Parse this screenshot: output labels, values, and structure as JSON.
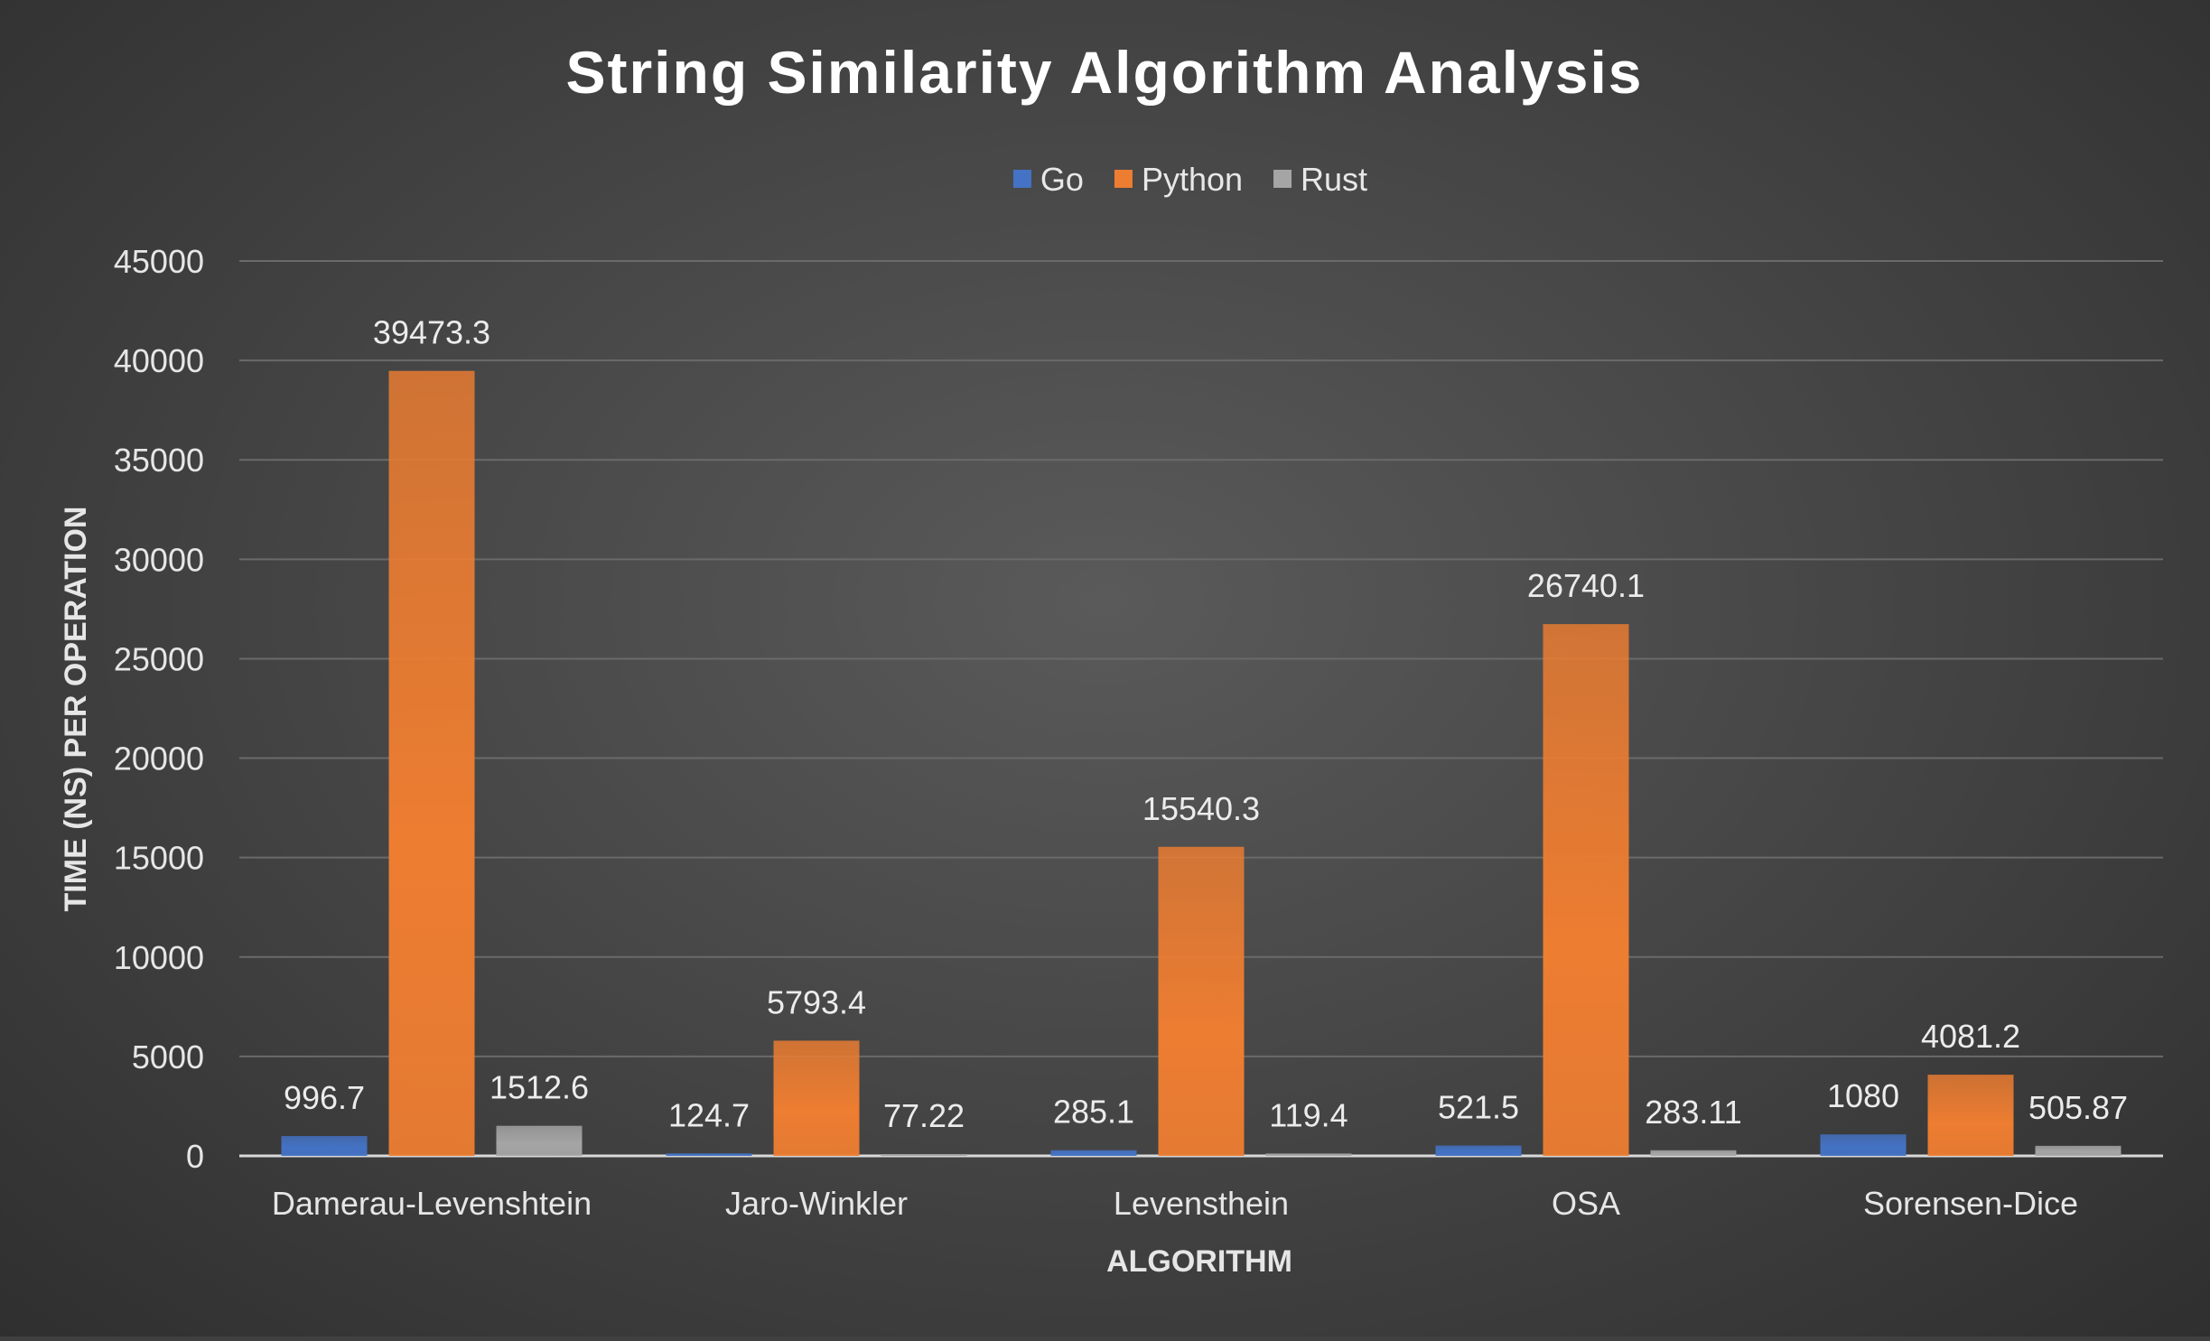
{
  "chart_data": {
    "type": "bar",
    "title": "String Similarity Algorithm Analysis",
    "xlabel": "ALGORITHM",
    "ylabel": "TIME (NS) PER OPERATION",
    "categories": [
      "Damerau-Levenshtein",
      "Jaro-Winkler",
      "Levensthein",
      "OSA",
      "Sorensen-Dice"
    ],
    "series": [
      {
        "name": "Go",
        "color": "#4472c4",
        "values": [
          996.7,
          124.7,
          285.1,
          521.5,
          1080
        ],
        "labels": [
          "996.7",
          "124.7",
          "285.1",
          "521.5",
          "1080"
        ]
      },
      {
        "name": "Python",
        "color": "#ed7d31",
        "values": [
          39473.3,
          5793.4,
          15540.3,
          26740.1,
          4081.2
        ],
        "labels": [
          "39473.3",
          "5793.4",
          "15540.3",
          "26740.1",
          "4081.2"
        ]
      },
      {
        "name": "Rust",
        "color": "#a5a5a5",
        "values": [
          1512.6,
          77.22,
          119.4,
          283.11,
          505.87
        ],
        "labels": [
          "1512.6",
          "77.22",
          "119.4",
          "283.11",
          "505.87"
        ]
      }
    ],
    "ylim": [
      0,
      45000
    ],
    "yticks": [
      0,
      5000,
      10000,
      15000,
      20000,
      25000,
      30000,
      35000,
      40000,
      45000
    ],
    "grid": true,
    "legend": "top-center"
  }
}
